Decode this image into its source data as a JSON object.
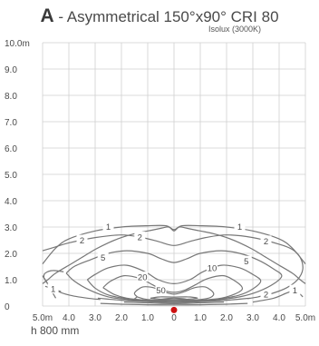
{
  "header": {
    "letter": "A",
    "text": " - Asymmetrical 150°x90° CRI 80",
    "subtitle": "Isolux (3000K)"
  },
  "footer": {
    "mount_height": "h 800 mm"
  },
  "chart_data": {
    "type": "contour",
    "title": "A - Asymmetrical 150°x90° CRI 80",
    "subtitle": "Isolux (3000K)",
    "xlim": [
      -5,
      5
    ],
    "ylim": [
      0,
      10
    ],
    "x_ticks": [
      {
        "value": -5,
        "label": "5.0m"
      },
      {
        "value": -4,
        "label": "4.0"
      },
      {
        "value": -3,
        "label": "3.0"
      },
      {
        "value": -2,
        "label": "2.0"
      },
      {
        "value": -1,
        "label": "1.0"
      },
      {
        "value": 0,
        "label": "0"
      },
      {
        "value": 1,
        "label": "1.0"
      },
      {
        "value": 2,
        "label": "2.0"
      },
      {
        "value": 3,
        "label": "3.0"
      },
      {
        "value": 4,
        "label": "4.0"
      },
      {
        "value": 5,
        "label": "5.0m"
      }
    ],
    "y_ticks": [
      {
        "value": 0,
        "label": "0"
      },
      {
        "value": 1,
        "label": "1.0"
      },
      {
        "value": 2,
        "label": "2.0"
      },
      {
        "value": 3,
        "label": "3.0"
      },
      {
        "value": 4,
        "label": "4.0"
      },
      {
        "value": 5,
        "label": "5.0"
      },
      {
        "value": 6,
        "label": "6.0"
      },
      {
        "value": 7,
        "label": "7.0"
      },
      {
        "value": 8,
        "label": "8.0"
      },
      {
        "value": 9,
        "label": "9.0"
      },
      {
        "value": 10,
        "label": "10.0m"
      }
    ],
    "grid": true,
    "line_color": "#777777",
    "marker": {
      "x": 0,
      "y": -0.15,
      "color": "#cc1111"
    },
    "contours": [
      {
        "level": "1",
        "points": [
          [
            -5,
            0.85
          ],
          [
            -4.8,
            1.0
          ],
          [
            -4.5,
            1.25
          ],
          [
            -4,
            1.55
          ],
          [
            -3.5,
            1.85
          ],
          [
            -3,
            2.15
          ],
          [
            -2.5,
            2.4
          ],
          [
            -2,
            2.6
          ],
          [
            -1.5,
            2.75
          ],
          [
            -1,
            2.85
          ],
          [
            -0.5,
            2.95
          ],
          [
            -0.2,
            3.0
          ],
          [
            0,
            2.85
          ],
          [
            0.2,
            3.0
          ],
          [
            0.5,
            2.95
          ],
          [
            1,
            2.85
          ],
          [
            1.5,
            2.75
          ],
          [
            2,
            2.6
          ],
          [
            2.5,
            2.4
          ],
          [
            3,
            2.15
          ],
          [
            3.5,
            1.85
          ],
          [
            4,
            1.55
          ],
          [
            4.5,
            1.25
          ],
          [
            4.8,
            1.0
          ],
          [
            5,
            0.85
          ]
        ]
      },
      {
        "level": "1",
        "points": [
          [
            -5,
            1.6
          ],
          [
            -4.5,
            2.2
          ],
          [
            -4,
            2.55
          ],
          [
            -3,
            2.85
          ],
          [
            -2,
            3.0
          ],
          [
            -1,
            3.05
          ],
          [
            -0.3,
            3.05
          ],
          [
            0,
            2.9
          ],
          [
            0.3,
            3.05
          ],
          [
            1,
            3.05
          ],
          [
            2,
            3.0
          ],
          [
            3,
            2.85
          ],
          [
            4,
            2.55
          ],
          [
            4.5,
            2.2
          ],
          [
            5,
            1.6
          ]
        ],
        "labels": [
          {
            "x": -2.5,
            "y": 3.02
          },
          {
            "x": 2.5,
            "y": 3.02
          }
        ]
      },
      {
        "level": "2",
        "points": [
          [
            -5,
            1.15
          ],
          [
            -4.8,
            0.85
          ],
          [
            -4.5,
            0.6
          ],
          [
            -4,
            0.42
          ],
          [
            -3.3,
            0.3
          ],
          [
            -2.8,
            0.25
          ]
        ]
      },
      {
        "level": "2",
        "points": [
          [
            -5,
            2.1
          ],
          [
            -4.5,
            2.25
          ],
          [
            -4,
            2.4
          ],
          [
            -3,
            2.6
          ],
          [
            -2,
            2.7
          ],
          [
            -1.2,
            2.6
          ],
          [
            -0.6,
            2.45
          ],
          [
            0,
            2.3
          ],
          [
            0.6,
            2.45
          ],
          [
            1.2,
            2.6
          ],
          [
            2,
            2.7
          ],
          [
            3,
            2.6
          ],
          [
            4,
            2.35
          ],
          [
            4.5,
            2.15
          ],
          [
            4.8,
            1.85
          ],
          [
            4.9,
            1.4
          ],
          [
            4.7,
            1.0
          ],
          [
            4.3,
            0.7
          ],
          [
            3.8,
            0.5
          ],
          [
            3.2,
            0.35
          ],
          [
            2.8,
            0.28
          ]
        ],
        "labels": [
          {
            "x": -3.5,
            "y": 2.5
          },
          {
            "x": -1.3,
            "y": 2.62
          },
          {
            "x": 3.5,
            "y": 2.47
          },
          {
            "x": 3.5,
            "y": 0.45
          }
        ]
      },
      {
        "level": "5",
        "points": [
          [
            -4.1,
            1.25
          ],
          [
            -3.8,
            1.5
          ],
          [
            -3.2,
            1.75
          ],
          [
            -2.5,
            2.0
          ],
          [
            -1.8,
            2.1
          ],
          [
            -1,
            2.0
          ],
          [
            -0.5,
            1.8
          ],
          [
            0,
            1.65
          ],
          [
            0.5,
            1.8
          ],
          [
            1,
            2.0
          ],
          [
            1.8,
            2.1
          ],
          [
            2.5,
            2.0
          ],
          [
            3.2,
            1.75
          ],
          [
            3.8,
            1.4
          ],
          [
            4.1,
            1.15
          ],
          [
            3.8,
            0.85
          ],
          [
            3.2,
            0.55
          ],
          [
            2.5,
            0.35
          ],
          [
            1.5,
            0.22
          ],
          [
            0.5,
            0.15
          ],
          [
            -0.5,
            0.15
          ],
          [
            -1.5,
            0.22
          ],
          [
            -2.5,
            0.35
          ],
          [
            -3.2,
            0.6
          ],
          [
            -3.8,
            0.95
          ],
          [
            -4.1,
            1.25
          ]
        ],
        "labels": [
          {
            "x": -2.7,
            "y": 1.85
          },
          {
            "x": 2.75,
            "y": 1.7
          }
        ]
      },
      {
        "level": "10",
        "points": [
          [
            -3.3,
            1.0
          ],
          [
            -3.0,
            1.2
          ],
          [
            -2.5,
            1.45
          ],
          [
            -1.8,
            1.55
          ],
          [
            -1.1,
            1.3
          ],
          [
            -0.6,
            1.0
          ],
          [
            0,
            0.85
          ],
          [
            0.6,
            1.0
          ],
          [
            1.1,
            1.3
          ],
          [
            1.8,
            1.55
          ],
          [
            2.5,
            1.45
          ],
          [
            3.0,
            1.2
          ],
          [
            3.3,
            0.95
          ],
          [
            3.0,
            0.65
          ],
          [
            2.5,
            0.42
          ],
          [
            1.8,
            0.28
          ],
          [
            1.0,
            0.2
          ],
          [
            0,
            0.16
          ],
          [
            -1.0,
            0.2
          ],
          [
            -1.8,
            0.28
          ],
          [
            -2.5,
            0.42
          ],
          [
            -3.0,
            0.68
          ],
          [
            -3.3,
            1.0
          ]
        ],
        "labels": [
          {
            "x": 1.45,
            "y": 1.45
          }
        ]
      },
      {
        "level": "20",
        "points": [
          [
            -2.7,
            0.7
          ],
          [
            -2.4,
            0.95
          ],
          [
            -1.9,
            1.15
          ],
          [
            -1.3,
            1.05
          ],
          [
            -0.8,
            0.8
          ],
          [
            -0.4,
            0.6
          ],
          [
            0,
            0.52
          ],
          [
            0.4,
            0.6
          ],
          [
            0.8,
            0.8
          ],
          [
            1.3,
            1.05
          ],
          [
            1.9,
            1.15
          ],
          [
            2.4,
            0.9
          ],
          [
            2.6,
            0.65
          ],
          [
            2.3,
            0.45
          ],
          [
            1.8,
            0.3
          ],
          [
            1.0,
            0.22
          ],
          [
            0,
            0.18
          ],
          [
            -1.0,
            0.22
          ],
          [
            -1.8,
            0.3
          ],
          [
            -2.3,
            0.45
          ],
          [
            -2.7,
            0.7
          ]
        ],
        "labels": [
          {
            "x": -1.2,
            "y": 1.1
          }
        ]
      },
      {
        "level": "50",
        "points": [
          [
            -1.4,
            0.35
          ],
          [
            -1.5,
            0.5
          ],
          [
            -1.2,
            0.72
          ],
          [
            -0.8,
            0.7
          ],
          [
            -0.4,
            0.55
          ],
          [
            0,
            0.45
          ],
          [
            0.4,
            0.55
          ],
          [
            0.8,
            0.7
          ],
          [
            1.2,
            0.72
          ],
          [
            1.5,
            0.5
          ],
          [
            1.4,
            0.33
          ],
          [
            1.0,
            0.25
          ],
          [
            0,
            0.22
          ],
          [
            -1.0,
            0.25
          ],
          [
            -1.4,
            0.35
          ]
        ],
        "labels": [
          {
            "x": -0.5,
            "y": 0.6
          }
        ]
      },
      {
        "level": "",
        "points": [
          [
            -0.9,
            0.3
          ],
          [
            -0.5,
            0.35
          ],
          [
            0,
            0.34
          ],
          [
            0.5,
            0.35
          ],
          [
            0.9,
            0.3
          ],
          [
            0.5,
            0.26
          ],
          [
            0,
            0.25
          ],
          [
            -0.5,
            0.26
          ],
          [
            -0.9,
            0.3
          ]
        ]
      },
      {
        "level": "",
        "points": [
          [
            -0.5,
            0.26
          ],
          [
            -0.2,
            0.29
          ],
          [
            0,
            0.3
          ],
          [
            0.2,
            0.29
          ],
          [
            0.5,
            0.26
          ],
          [
            0.2,
            0.24
          ],
          [
            0,
            0.235
          ],
          [
            -0.2,
            0.24
          ],
          [
            -0.5,
            0.26
          ]
        ]
      },
      {
        "level": "",
        "points": [
          [
            -2.9,
            0.3
          ],
          [
            -2.0,
            0.22
          ],
          [
            -1.0,
            0.17
          ],
          [
            0,
            0.13
          ],
          [
            1.0,
            0.17
          ],
          [
            2.0,
            0.22
          ],
          [
            2.9,
            0.3
          ]
        ]
      },
      {
        "level": "",
        "points": [
          [
            -1.9,
            0.15
          ],
          [
            -1.0,
            0.12
          ],
          [
            0,
            0.09
          ],
          [
            1.0,
            0.12
          ],
          [
            1.9,
            0.15
          ]
        ]
      },
      {
        "level": "",
        "points": [
          [
            -2.8,
            0.1
          ],
          [
            -2.0,
            0.07
          ],
          [
            -1.0,
            0.05
          ],
          [
            0,
            0.04
          ],
          [
            1.0,
            0.05
          ],
          [
            2.0,
            0.07
          ],
          [
            2.8,
            0.1
          ]
        ]
      },
      {
        "level": "",
        "points": [
          [
            -1.6,
            0.2
          ],
          [
            -1.4,
            0.35
          ]
        ]
      },
      {
        "level": "",
        "points": [
          [
            -4.5,
            0.3
          ],
          [
            -4.9,
            1.0
          ],
          [
            -4.95,
            1.1
          ],
          [
            -4.9,
            1.25
          ],
          [
            -4.6,
            1.35
          ],
          [
            -4.2,
            1.3
          ]
        ]
      },
      {
        "level": "1",
        "points": [
          [
            3.0,
            0.15
          ],
          [
            3.8,
            0.3
          ],
          [
            4.3,
            0.5
          ],
          [
            4.6,
            0.6
          ],
          [
            4.8,
            0.45
          ],
          [
            4.9,
            0.35
          ]
        ],
        "labels": [
          {
            "x": 4.6,
            "y": 0.6
          }
        ]
      },
      {
        "level": "1",
        "points": [
          [
            -4.9,
            0.75
          ],
          [
            -4.6,
            0.65
          ],
          [
            -4.3,
            0.55
          ]
        ],
        "labels": [
          {
            "x": -4.6,
            "y": 0.65
          }
        ]
      }
    ]
  }
}
